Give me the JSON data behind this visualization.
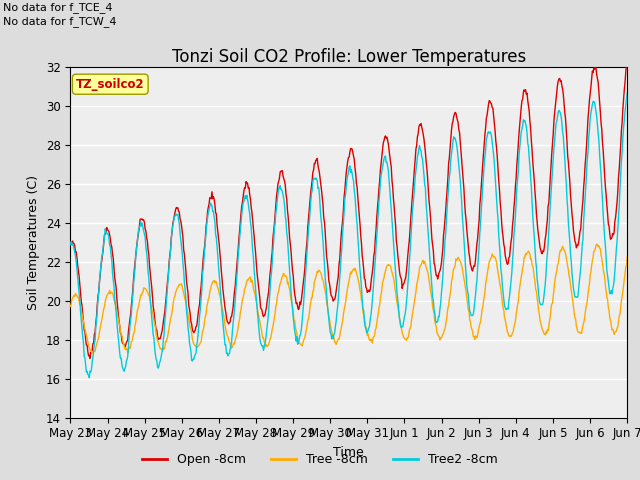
{
  "title": "Tonzi Soil CO2 Profile: Lower Temperatures",
  "xlabel": "Time",
  "ylabel": "Soil Temperatures (C)",
  "annotation_line1": "No data for f_TCE_4",
  "annotation_line2": "No data for f_TCW_4",
  "box_label": "TZ_soilco2",
  "ylim": [
    14,
    32
  ],
  "yticks": [
    14,
    16,
    18,
    20,
    22,
    24,
    26,
    28,
    30,
    32
  ],
  "xtick_labels": [
    "May 23",
    "May 24",
    "May 25",
    "May 26",
    "May 27",
    "May 28",
    "May 29",
    "May 30",
    "May 31",
    "Jun 1",
    "Jun 2",
    "Jun 3",
    "Jun 4",
    "Jun 5",
    "Jun 6",
    "Jun 7"
  ],
  "legend_labels": [
    "Open -8cm",
    "Tree -8cm",
    "Tree2 -8cm"
  ],
  "legend_colors": [
    "#dd0000",
    "#ffaa00",
    "#00ccdd"
  ],
  "bg_color": "#dddddd",
  "plot_bg": "#eeeeee",
  "title_fontsize": 12,
  "axis_fontsize": 9,
  "tick_fontsize": 8.5,
  "figwidth": 6.4,
  "figheight": 4.8,
  "dpi": 100
}
